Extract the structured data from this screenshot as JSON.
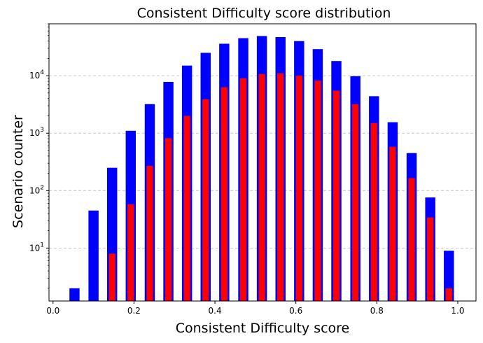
{
  "chart_data": {
    "type": "bar",
    "title": "Consistent Difficulty score distribution",
    "xlabel": "Consistent Difficulty score",
    "ylabel": "Scenario counter",
    "yscale": "log",
    "xlim": [
      -0.01,
      1.045
    ],
    "ylim": [
      1.2,
      80000
    ],
    "x_ticks": [
      0.0,
      0.2,
      0.4,
      0.6,
      0.8,
      1.0
    ],
    "x_tick_labels": [
      "0.0",
      "0.2",
      "0.4",
      "0.6",
      "0.8",
      "1.0"
    ],
    "y_ticks": [
      10,
      100,
      1000,
      10000
    ],
    "y_tick_labels": [
      {
        "base": "10",
        "exp": "1"
      },
      {
        "base": "10",
        "exp": "2"
      },
      {
        "base": "10",
        "exp": "3"
      },
      {
        "base": "10",
        "exp": "4"
      }
    ],
    "grid": "y-major-dashed",
    "x": [
      0.053,
      0.1,
      0.146,
      0.192,
      0.239,
      0.285,
      0.331,
      0.377,
      0.423,
      0.47,
      0.516,
      0.562,
      0.608,
      0.654,
      0.7,
      0.747,
      0.793,
      0.839,
      0.886,
      0.932,
      0.978
    ],
    "series": [
      {
        "color": "#0000ff",
        "bar_width": 0.025,
        "values": [
          2,
          45,
          250,
          1100,
          3200,
          7800,
          15000,
          25000,
          36000,
          45000,
          49000,
          47000,
          40000,
          29000,
          18000,
          9800,
          4400,
          1550,
          450,
          76,
          9
        ]
      },
      {
        "color": "#ff0000",
        "bar_width": 0.016,
        "values": [
          null,
          null,
          8,
          58,
          270,
          820,
          2000,
          3900,
          6300,
          9000,
          10700,
          11000,
          10000,
          8200,
          5500,
          3200,
          1500,
          580,
          165,
          34,
          2
        ]
      }
    ]
  }
}
